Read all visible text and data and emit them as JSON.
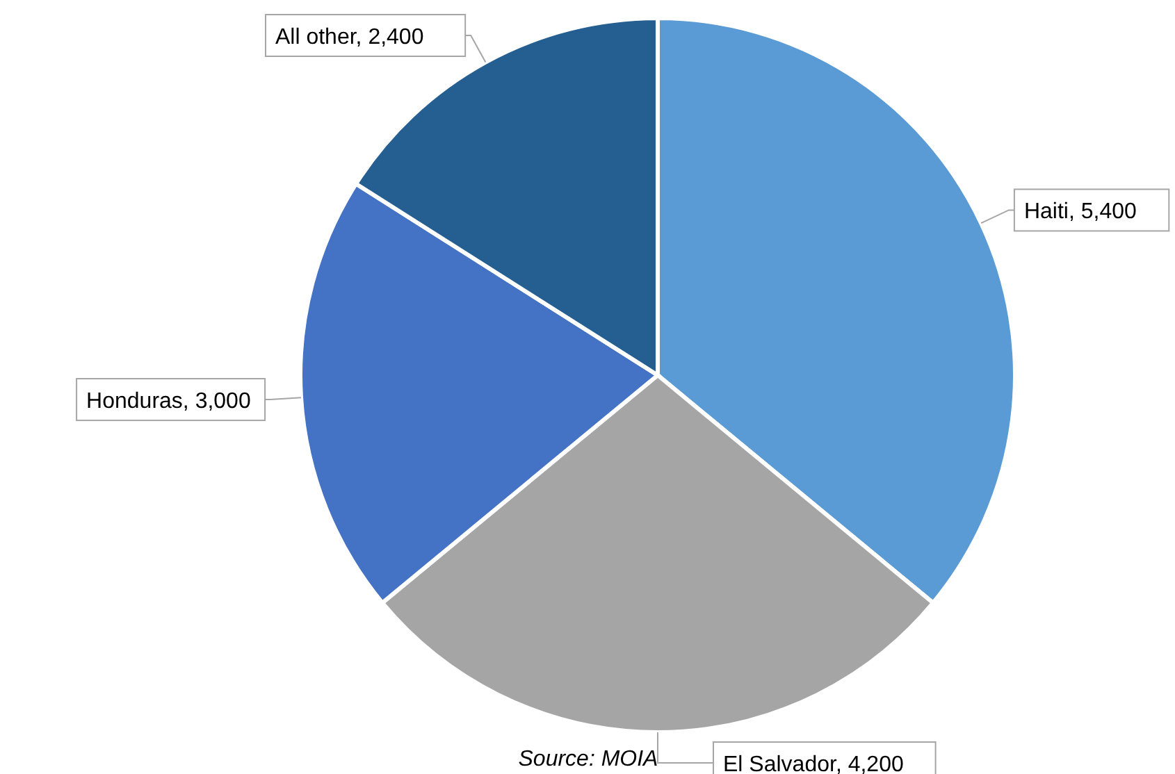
{
  "chart_data": {
    "type": "pie",
    "categories": [
      "Haiti",
      "El Salvador",
      "Honduras",
      "All other"
    ],
    "values": [
      5400,
      4200,
      3000,
      2400
    ],
    "colors": [
      "#5b9bd5",
      "#a5a5a5",
      "#4472c4",
      "#255e91"
    ],
    "value_labels": [
      ", 5,400",
      ", 4,200",
      ", 3,000",
      ", 2,400"
    ],
    "annotations": [
      "Source: MOIA"
    ]
  }
}
